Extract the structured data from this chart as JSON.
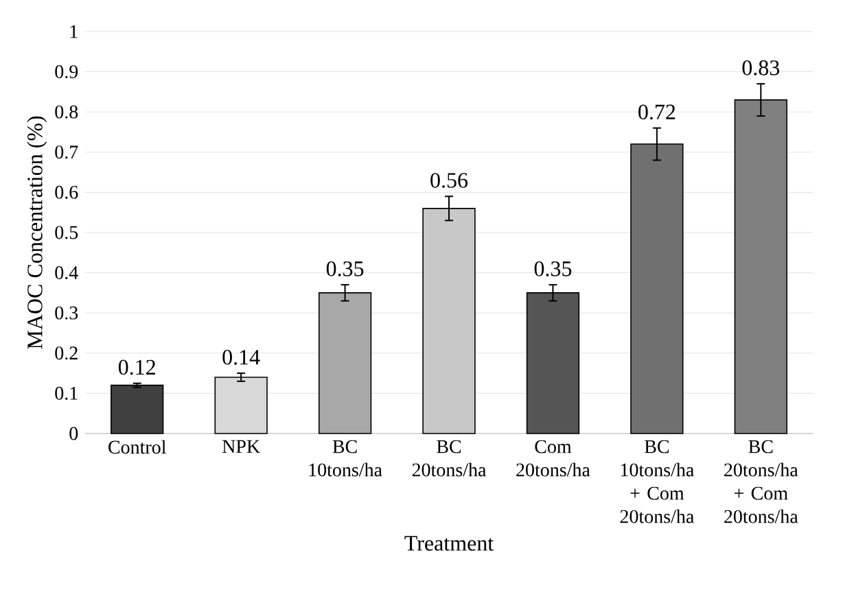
{
  "chart_data": {
    "type": "bar",
    "xlabel": "Treatment",
    "ylabel": "MAOC Concentration (%)",
    "categories": [
      "Control",
      "NPK",
      "BC 10tons/ha",
      "BC 20tons/ha",
      "Com 20tons/ha",
      "BC 10tons/ha + Com 20tons/ha",
      "BC 20tons/ha + Com 20tons/ha"
    ],
    "values": [
      0.12,
      0.14,
      0.35,
      0.56,
      0.35,
      0.72,
      0.83
    ],
    "errors": [
      0.005,
      0.01,
      0.02,
      0.03,
      0.02,
      0.04,
      0.04
    ],
    "value_labels": [
      "0.12",
      "0.14",
      "0.35",
      "0.56",
      "0.35",
      "0.72",
      "0.83"
    ],
    "colors": [
      "#404040",
      "#d8d8d8",
      "#a8a8a8",
      "#c8c8c8",
      "#555555",
      "#707070",
      "#808080"
    ],
    "ylim": [
      0,
      1
    ],
    "yticks": [
      0,
      0.1,
      0.2,
      0.3,
      0.4,
      0.5,
      0.6,
      0.7,
      0.8,
      0.9,
      1
    ],
    "grid": "y"
  }
}
